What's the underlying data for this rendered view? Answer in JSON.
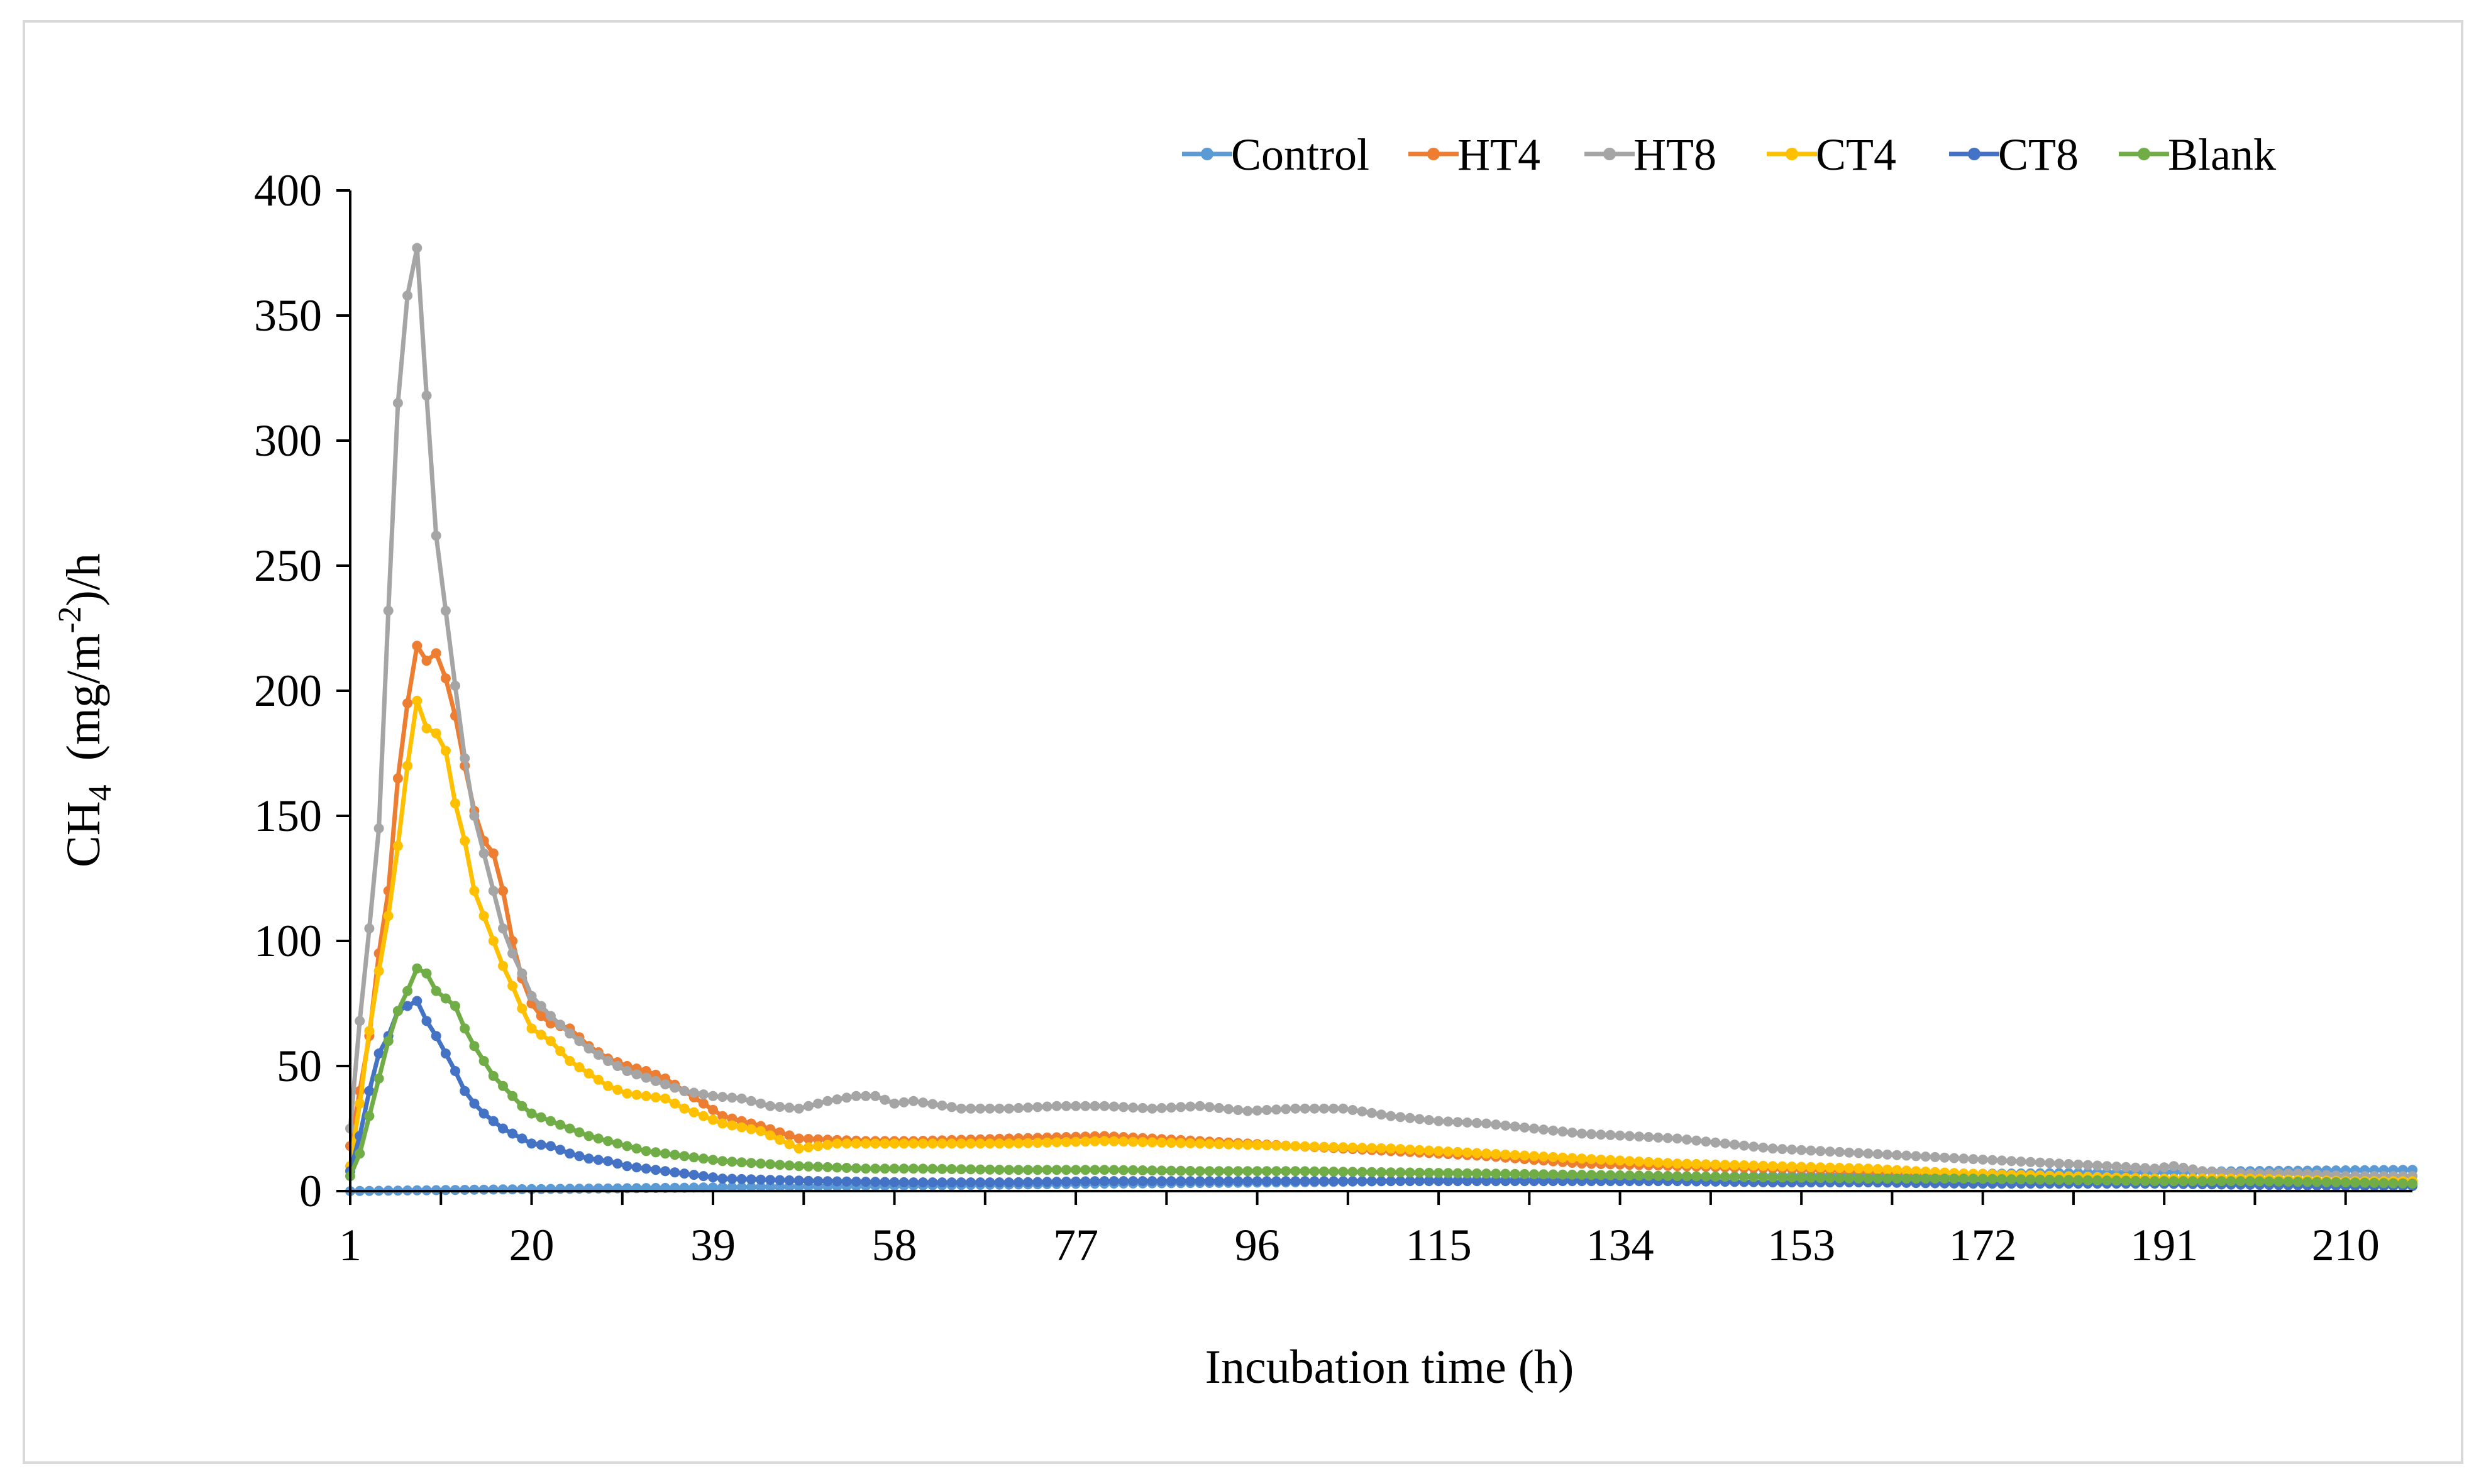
{
  "chart_data": {
    "type": "line",
    "xlabel": "Incubation time (h)",
    "ylabel": {
      "main": "CH",
      "sub": "4",
      "mid": "  (mg/m",
      "sup": "-2",
      "tail": ")/h"
    },
    "xlim": [
      1,
      217
    ],
    "ylim": [
      0,
      400
    ],
    "x_ticks": [
      1,
      20,
      39,
      58,
      77,
      96,
      115,
      134,
      153,
      172,
      191,
      210
    ],
    "y_ticks": [
      0,
      50,
      100,
      150,
      200,
      250,
      300,
      350,
      400
    ],
    "grid": false,
    "legend_position": "top-right",
    "series": [
      {
        "name": "Control",
        "color": "#5B9BD5",
        "points": [
          [
            1,
            0
          ],
          [
            20,
            0.8
          ],
          [
            40,
            1.5
          ],
          [
            60,
            2.2
          ],
          [
            80,
            3
          ],
          [
            100,
            3.5
          ],
          [
            120,
            4.5
          ],
          [
            140,
            5.5
          ],
          [
            160,
            6.5
          ],
          [
            180,
            7.2
          ],
          [
            200,
            8
          ],
          [
            217,
            8.5
          ]
        ]
      },
      {
        "name": "HT4",
        "color": "#ED7D31",
        "points": [
          [
            1,
            18
          ],
          [
            2,
            40
          ],
          [
            3,
            62
          ],
          [
            4,
            95
          ],
          [
            5,
            120
          ],
          [
            6,
            165
          ],
          [
            7,
            195
          ],
          [
            8,
            218
          ],
          [
            9,
            212
          ],
          [
            10,
            215
          ],
          [
            11,
            205
          ],
          [
            12,
            190
          ],
          [
            13,
            170
          ],
          [
            14,
            152
          ],
          [
            15,
            140
          ],
          [
            16,
            135
          ],
          [
            17,
            120
          ],
          [
            18,
            100
          ],
          [
            19,
            85
          ],
          [
            20,
            75
          ],
          [
            21,
            70
          ],
          [
            22,
            67
          ],
          [
            24,
            65
          ],
          [
            26,
            58
          ],
          [
            28,
            53
          ],
          [
            30,
            50
          ],
          [
            32,
            48
          ],
          [
            34,
            45
          ],
          [
            36,
            40
          ],
          [
            38,
            35
          ],
          [
            40,
            30
          ],
          [
            44,
            26
          ],
          [
            48,
            21
          ],
          [
            55,
            20
          ],
          [
            60,
            20
          ],
          [
            70,
            21
          ],
          [
            80,
            22
          ],
          [
            90,
            20
          ],
          [
            100,
            18
          ],
          [
            110,
            16
          ],
          [
            120,
            14
          ],
          [
            130,
            11
          ],
          [
            140,
            10
          ],
          [
            150,
            9
          ],
          [
            160,
            8
          ],
          [
            170,
            7
          ],
          [
            180,
            6
          ],
          [
            190,
            5
          ],
          [
            200,
            5
          ],
          [
            210,
            4
          ],
          [
            217,
            4
          ]
        ]
      },
      {
        "name": "HT8",
        "color": "#A5A5A5",
        "points": [
          [
            1,
            25
          ],
          [
            2,
            68
          ],
          [
            3,
            105
          ],
          [
            4,
            145
          ],
          [
            5,
            232
          ],
          [
            6,
            315
          ],
          [
            7,
            358
          ],
          [
            8,
            377
          ],
          [
            9,
            318
          ],
          [
            10,
            262
          ],
          [
            11,
            232
          ],
          [
            12,
            202
          ],
          [
            13,
            173
          ],
          [
            14,
            150
          ],
          [
            15,
            135
          ],
          [
            16,
            120
          ],
          [
            17,
            105
          ],
          [
            18,
            95
          ],
          [
            19,
            87
          ],
          [
            20,
            78
          ],
          [
            22,
            70
          ],
          [
            24,
            63
          ],
          [
            26,
            57
          ],
          [
            28,
            52
          ],
          [
            30,
            48
          ],
          [
            33,
            44
          ],
          [
            36,
            40
          ],
          [
            39,
            38
          ],
          [
            42,
            37
          ],
          [
            45,
            34
          ],
          [
            48,
            33
          ],
          [
            51,
            36
          ],
          [
            54,
            38
          ],
          [
            56,
            38
          ],
          [
            58,
            35
          ],
          [
            60,
            36
          ],
          [
            65,
            33
          ],
          [
            70,
            33
          ],
          [
            75,
            34
          ],
          [
            80,
            34
          ],
          [
            85,
            33
          ],
          [
            90,
            34
          ],
          [
            95,
            32
          ],
          [
            100,
            33
          ],
          [
            105,
            33
          ],
          [
            110,
            30
          ],
          [
            115,
            28
          ],
          [
            120,
            27
          ],
          [
            125,
            25
          ],
          [
            130,
            23
          ],
          [
            135,
            22
          ],
          [
            140,
            21
          ],
          [
            145,
            19
          ],
          [
            150,
            17
          ],
          [
            155,
            16
          ],
          [
            160,
            15
          ],
          [
            165,
            14
          ],
          [
            170,
            13
          ],
          [
            175,
            12
          ],
          [
            180,
            11
          ],
          [
            185,
            10
          ],
          [
            190,
            9
          ],
          [
            192,
            10
          ],
          [
            195,
            8
          ],
          [
            200,
            7
          ],
          [
            205,
            7
          ],
          [
            210,
            6
          ],
          [
            217,
            6
          ]
        ]
      },
      {
        "name": "CT4",
        "color": "#FFC000",
        "points": [
          [
            1,
            10
          ],
          [
            2,
            35
          ],
          [
            3,
            64
          ],
          [
            4,
            88
          ],
          [
            5,
            110
          ],
          [
            6,
            138
          ],
          [
            7,
            170
          ],
          [
            8,
            196
          ],
          [
            9,
            185
          ],
          [
            10,
            183
          ],
          [
            11,
            176
          ],
          [
            12,
            155
          ],
          [
            13,
            140
          ],
          [
            14,
            120
          ],
          [
            15,
            110
          ],
          [
            16,
            100
          ],
          [
            17,
            90
          ],
          [
            18,
            82
          ],
          [
            19,
            73
          ],
          [
            20,
            65
          ],
          [
            22,
            60
          ],
          [
            24,
            52
          ],
          [
            26,
            47
          ],
          [
            28,
            42
          ],
          [
            30,
            39
          ],
          [
            32,
            38
          ],
          [
            34,
            37
          ],
          [
            36,
            33
          ],
          [
            38,
            30
          ],
          [
            40,
            27
          ],
          [
            44,
            24
          ],
          [
            48,
            17
          ],
          [
            52,
            19
          ],
          [
            56,
            19
          ],
          [
            60,
            19
          ],
          [
            70,
            19
          ],
          [
            80,
            20
          ],
          [
            90,
            19
          ],
          [
            100,
            18
          ],
          [
            110,
            17
          ],
          [
            120,
            15
          ],
          [
            130,
            13
          ],
          [
            140,
            11
          ],
          [
            150,
            10
          ],
          [
            160,
            9
          ],
          [
            170,
            7
          ],
          [
            180,
            6
          ],
          [
            190,
            5
          ],
          [
            200,
            5
          ],
          [
            210,
            4
          ],
          [
            217,
            4
          ]
        ]
      },
      {
        "name": "CT8",
        "color": "#4472C4",
        "points": [
          [
            1,
            8
          ],
          [
            2,
            22
          ],
          [
            3,
            40
          ],
          [
            4,
            55
          ],
          [
            5,
            62
          ],
          [
            6,
            72
          ],
          [
            7,
            74
          ],
          [
            8,
            76
          ],
          [
            9,
            68
          ],
          [
            10,
            62
          ],
          [
            11,
            55
          ],
          [
            12,
            48
          ],
          [
            13,
            40
          ],
          [
            14,
            35
          ],
          [
            15,
            31
          ],
          [
            16,
            28
          ],
          [
            17,
            25
          ],
          [
            18,
            23
          ],
          [
            19,
            21
          ],
          [
            20,
            19
          ],
          [
            22,
            18
          ],
          [
            24,
            15
          ],
          [
            26,
            13
          ],
          [
            28,
            12
          ],
          [
            30,
            10
          ],
          [
            32,
            9
          ],
          [
            34,
            8
          ],
          [
            36,
            7
          ],
          [
            38,
            6
          ],
          [
            40,
            5
          ],
          [
            45,
            4.5
          ],
          [
            50,
            4
          ],
          [
            60,
            3.5
          ],
          [
            70,
            3.5
          ],
          [
            80,
            4
          ],
          [
            90,
            4
          ],
          [
            100,
            4
          ],
          [
            110,
            4
          ],
          [
            120,
            4
          ],
          [
            130,
            4
          ],
          [
            140,
            4
          ],
          [
            150,
            3.5
          ],
          [
            160,
            3.5
          ],
          [
            170,
            3
          ],
          [
            180,
            3
          ],
          [
            190,
            3
          ],
          [
            200,
            2.5
          ],
          [
            210,
            2
          ],
          [
            217,
            2
          ]
        ]
      },
      {
        "name": "Blank",
        "color": "#70AD47",
        "points": [
          [
            1,
            6
          ],
          [
            2,
            15
          ],
          [
            3,
            30
          ],
          [
            4,
            45
          ],
          [
            5,
            60
          ],
          [
            6,
            72
          ],
          [
            7,
            80
          ],
          [
            8,
            89
          ],
          [
            9,
            87
          ],
          [
            10,
            80
          ],
          [
            11,
            77
          ],
          [
            12,
            74
          ],
          [
            13,
            65
          ],
          [
            14,
            58
          ],
          [
            15,
            52
          ],
          [
            16,
            46
          ],
          [
            17,
            42
          ],
          [
            18,
            38
          ],
          [
            19,
            34
          ],
          [
            20,
            31
          ],
          [
            22,
            28
          ],
          [
            24,
            25
          ],
          [
            26,
            22
          ],
          [
            28,
            20
          ],
          [
            30,
            18
          ],
          [
            32,
            16
          ],
          [
            34,
            15
          ],
          [
            36,
            14
          ],
          [
            38,
            13
          ],
          [
            40,
            12
          ],
          [
            44,
            11
          ],
          [
            48,
            10
          ],
          [
            55,
            9
          ],
          [
            60,
            9
          ],
          [
            70,
            8.5
          ],
          [
            80,
            8.5
          ],
          [
            90,
            8
          ],
          [
            100,
            8
          ],
          [
            110,
            7.5
          ],
          [
            120,
            7
          ],
          [
            130,
            6.5
          ],
          [
            140,
            6
          ],
          [
            150,
            5.5
          ],
          [
            160,
            5
          ],
          [
            170,
            5
          ],
          [
            180,
            4.5
          ],
          [
            190,
            4
          ],
          [
            200,
            4
          ],
          [
            210,
            3.5
          ],
          [
            217,
            3
          ]
        ]
      }
    ]
  }
}
